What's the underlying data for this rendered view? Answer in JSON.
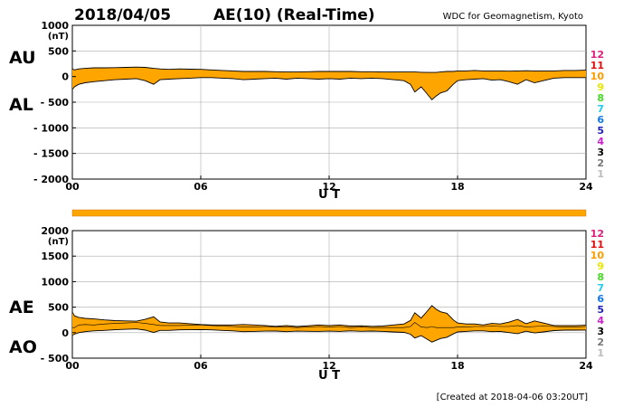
{
  "header": {
    "date": "2018/04/05",
    "title": "AE(10) (Real-Time)",
    "source": "WDC for Geomagnetism, Kyoto"
  },
  "footer": {
    "created": "[Created at 2018-04-06 03:20UT]"
  },
  "colors": {
    "fill": "#FFA500",
    "line": "#000000",
    "grid": "#aaaaaa"
  },
  "station_legend": [
    {
      "label": "12",
      "color": "#e0207a"
    },
    {
      "label": "11",
      "color": "#e01010"
    },
    {
      "label": "10",
      "color": "#ff9a00"
    },
    {
      "label": "9",
      "color": "#e8e800"
    },
    {
      "label": "8",
      "color": "#44dd22"
    },
    {
      "label": "7",
      "color": "#22ccee"
    },
    {
      "label": "6",
      "color": "#1177ee"
    },
    {
      "label": "5",
      "color": "#2222bb"
    },
    {
      "label": "4",
      "color": "#cc22cc"
    },
    {
      "label": "3",
      "color": "#000000"
    },
    {
      "label": "2",
      "color": "#777777"
    },
    {
      "label": "1",
      "color": "#bbbbbb"
    }
  ],
  "chart_data": [
    {
      "type": "area",
      "name": "AU/AL",
      "left_labels": [
        "AU",
        "AL"
      ],
      "unit": "(nT)",
      "xlabel": "U T",
      "xticks": [
        "00",
        "06",
        "12",
        "18",
        "24"
      ],
      "xlim": [
        0,
        24
      ],
      "ylim": [
        -2000,
        1000
      ],
      "ytick_values": [
        1000,
        500,
        0,
        -500,
        -1000,
        -1500,
        -2000
      ],
      "ytick_labels": [
        "1000",
        "500",
        "0",
        "- 500",
        "- 1000",
        "- 1500",
        "- 2000"
      ],
      "grid": true,
      "x": [
        0,
        0.1,
        0.3,
        0.6,
        1,
        1.5,
        2,
        2.5,
        3,
        3.4,
        3.8,
        4.1,
        4.5,
        5,
        5.5,
        6,
        6.5,
        7,
        7.5,
        8,
        8.5,
        9,
        9.5,
        10,
        10.5,
        11,
        11.5,
        12,
        12.5,
        13,
        13.5,
        14,
        14.5,
        15,
        15.5,
        15.8,
        16.0,
        16.3,
        16.6,
        16.8,
        17.0,
        17.2,
        17.5,
        17.8,
        18.0,
        18.4,
        18.8,
        19.2,
        19.6,
        20,
        20.4,
        20.8,
        21.2,
        21.6,
        22,
        22.5,
        23,
        23.5,
        24
      ],
      "upper": [
        150,
        130,
        150,
        160,
        170,
        170,
        175,
        180,
        185,
        180,
        160,
        150,
        140,
        150,
        145,
        140,
        130,
        120,
        110,
        100,
        100,
        100,
        95,
        90,
        90,
        95,
        100,
        100,
        100,
        100,
        95,
        95,
        90,
        90,
        90,
        90,
        90,
        85,
        80,
        80,
        80,
        90,
        100,
        100,
        110,
        110,
        120,
        110,
        110,
        110,
        105,
        110,
        115,
        110,
        110,
        110,
        120,
        120,
        125
      ],
      "lower": [
        -250,
        -200,
        -150,
        -120,
        -100,
        -80,
        -60,
        -50,
        -40,
        -80,
        -150,
        -60,
        -50,
        -40,
        -30,
        -20,
        -20,
        -30,
        -40,
        -60,
        -50,
        -40,
        -30,
        -50,
        -30,
        -40,
        -50,
        -40,
        -50,
        -30,
        -40,
        -30,
        -40,
        -60,
        -80,
        -150,
        -300,
        -200,
        -350,
        -450,
        -380,
        -320,
        -280,
        -150,
        -80,
        -60,
        -50,
        -40,
        -70,
        -60,
        -100,
        -150,
        -60,
        -120,
        -80,
        -30,
        -20,
        -20,
        -20
      ]
    },
    {
      "type": "area",
      "name": "AE/AO",
      "left_labels": [
        "AE",
        "AO"
      ],
      "unit": "(nT)",
      "xlabel": "U T",
      "xticks": [
        "00",
        "06",
        "12",
        "18",
        "24"
      ],
      "xlim": [
        0,
        24
      ],
      "ylim": [
        -500,
        2000
      ],
      "ytick_values": [
        2000,
        1500,
        1000,
        500,
        0,
        -500
      ],
      "ytick_labels": [
        "2000",
        "1500",
        "1000",
        "500",
        "0",
        "- 500"
      ],
      "grid": true,
      "x": [
        0,
        0.1,
        0.3,
        0.6,
        1,
        1.5,
        2,
        2.5,
        3,
        3.4,
        3.8,
        4.1,
        4.5,
        5,
        5.5,
        6,
        6.5,
        7,
        7.5,
        8,
        8.5,
        9,
        9.5,
        10,
        10.5,
        11,
        11.5,
        12,
        12.5,
        13,
        13.5,
        14,
        14.5,
        15,
        15.5,
        15.8,
        16.0,
        16.3,
        16.6,
        16.8,
        17.0,
        17.2,
        17.5,
        17.8,
        18.0,
        18.4,
        18.8,
        19.2,
        19.6,
        20,
        20.4,
        20.8,
        21.2,
        21.6,
        22,
        22.5,
        23,
        23.5,
        24
      ],
      "upper": [
        400,
        330,
        300,
        280,
        270,
        250,
        235,
        230,
        225,
        260,
        310,
        210,
        190,
        190,
        175,
        160,
        150,
        150,
        150,
        160,
        150,
        140,
        125,
        140,
        120,
        135,
        150,
        140,
        150,
        130,
        135,
        125,
        130,
        150,
        170,
        240,
        390,
        285,
        430,
        530,
        460,
        410,
        380,
        250,
        190,
        170,
        170,
        150,
        180,
        170,
        205,
        260,
        175,
        230,
        190,
        140,
        140,
        140,
        145
      ],
      "lower": [
        -50,
        -30,
        0,
        20,
        35,
        45,
        57,
        65,
        72,
        50,
        5,
        45,
        45,
        55,
        57,
        60,
        55,
        45,
        35,
        20,
        25,
        30,
        32,
        20,
        30,
        27,
        25,
        30,
        25,
        35,
        27,
        32,
        25,
        15,
        5,
        -30,
        -105,
        -58,
        -135,
        -185,
        -150,
        -115,
        -90,
        -25,
        15,
        25,
        35,
        35,
        20,
        25,
        2,
        -20,
        28,
        -5,
        15,
        40,
        50,
        50,
        52
      ],
      "mean_line": [
        100,
        100,
        150,
        160,
        150,
        170,
        180,
        190,
        200,
        180,
        160,
        140,
        140,
        140,
        150,
        150,
        140,
        130,
        120,
        110,
        110,
        120,
        110,
        110,
        100,
        110,
        120,
        110,
        120,
        100,
        110,
        100,
        100,
        100,
        100,
        120,
        200,
        110,
        100,
        120,
        100,
        100,
        100,
        100,
        110,
        110,
        120,
        120,
        130,
        120,
        120,
        140,
        110,
        120,
        130,
        120,
        110,
        110,
        120
      ],
      "index_bar": {
        "label": "AE(10)",
        "fill": "#FFA500"
      }
    }
  ]
}
